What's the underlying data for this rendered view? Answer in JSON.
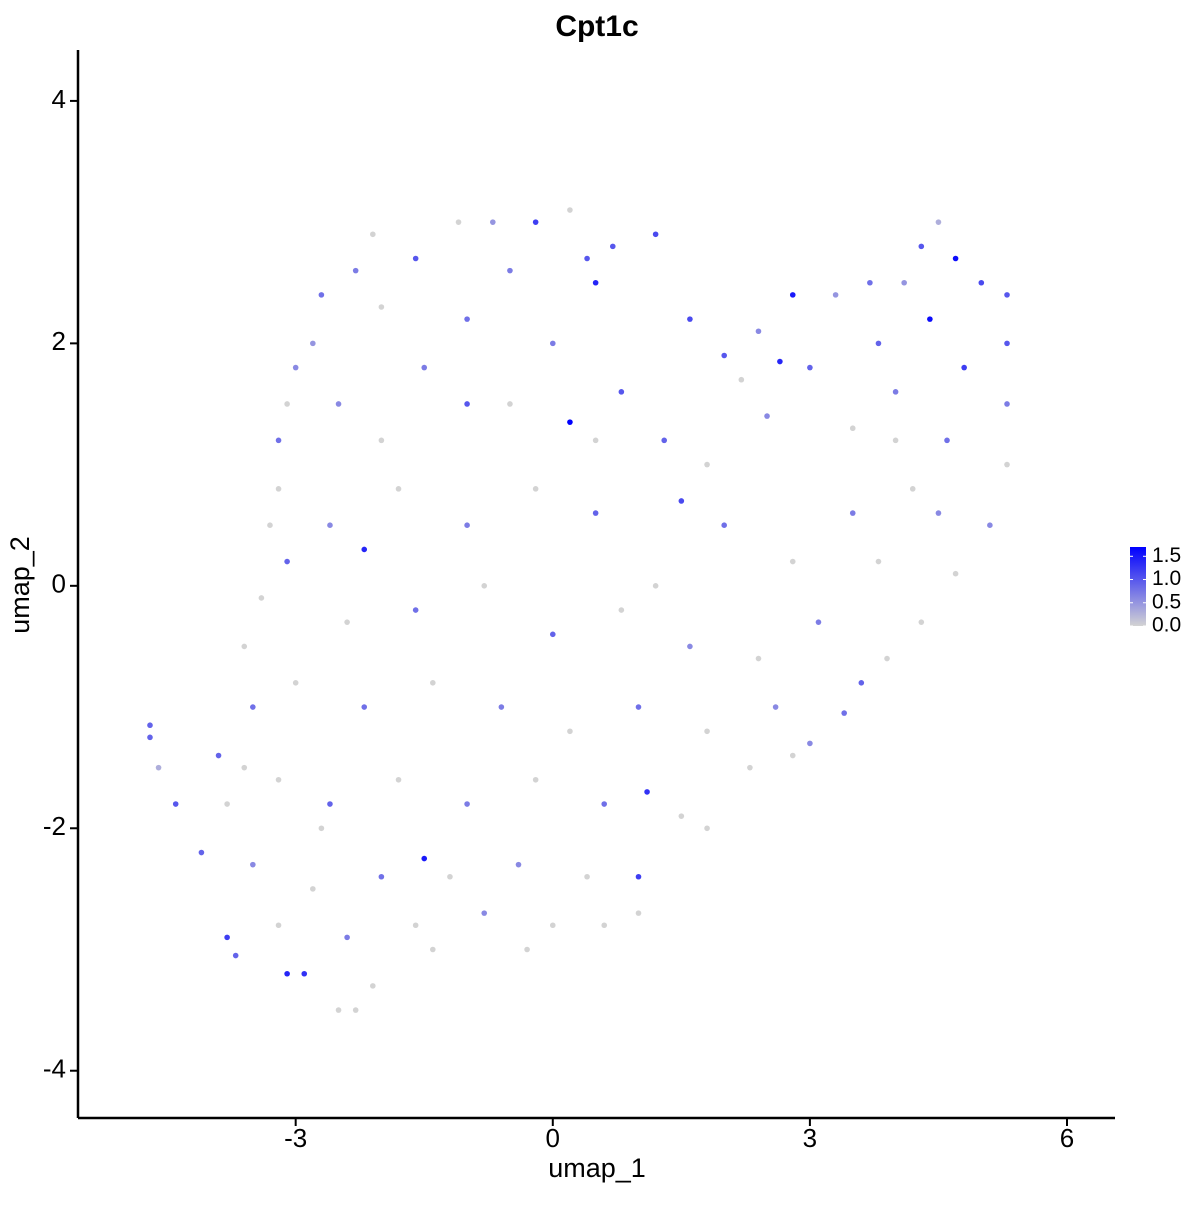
{
  "chart_data": {
    "type": "scatter",
    "title": "Cpt1c",
    "x_label": "umap_1",
    "y_label": "umap_2",
    "x": [
      -4.7,
      -4.7,
      -4.6,
      -4.4,
      -4.1,
      -3.8,
      -3.7,
      -3.1,
      -2.9,
      -2.5,
      -2.3,
      -2.1,
      -1.4,
      -0.3,
      0.6,
      1.0,
      1.0,
      1.1,
      1.5,
      1.8,
      2.3,
      2.8,
      3.0,
      3.4,
      3.6,
      3.9,
      4.3,
      4.7,
      5.1,
      5.3,
      5.3,
      5.3,
      5.3,
      5.0,
      4.7,
      4.5,
      4.3,
      4.1,
      3.7,
      3.3,
      2.8,
      2.4,
      2.0,
      1.6,
      1.2,
      0.7,
      0.4,
      0.2,
      -0.2,
      -0.7,
      -1.1,
      -1.6,
      -2.1,
      -2.3,
      -2.7,
      -2.8,
      -3.0,
      -3.1,
      -3.2,
      -3.2,
      -3.3,
      -3.1,
      -3.4,
      -3.6,
      -3.5,
      -3.9,
      -3.8,
      -2.5,
      -2.0,
      -1.5,
      -1.0,
      -0.5,
      0.0,
      0.8,
      1.3,
      1.8,
      2.5,
      3.0,
      3.5,
      4.0,
      4.6,
      4.8,
      4.2,
      3.5,
      2.8,
      2.0,
      1.2,
      0.5,
      -0.2,
      -1.0,
      -1.8,
      -2.6,
      -2.4,
      -1.6,
      -0.8,
      0.0,
      0.8,
      1.6,
      2.4,
      3.1,
      3.8,
      4.5,
      -3.0,
      -2.2,
      -1.4,
      -0.6,
      0.2,
      1.0,
      1.8,
      2.6,
      -3.2,
      -2.6,
      -1.8,
      -1.0,
      -0.2,
      0.6,
      -3.5,
      -2.8,
      -2.0,
      -1.2,
      -0.4,
      0.4,
      -3.2,
      -2.4,
      -1.6,
      -0.8,
      0.0,
      -1.0,
      0.5,
      -2.0,
      2.2,
      3.8,
      -0.5,
      1.5,
      -2.7,
      -3.6,
      4.0,
      0.2,
      -1.5,
      -2.2,
      4.4,
      0.5,
      2.65
    ],
    "y": [
      -1.25,
      -1.15,
      -1.5,
      -1.8,
      -2.2,
      -2.9,
      -3.05,
      -3.2,
      -3.2,
      -3.5,
      -3.5,
      -3.3,
      -3.0,
      -3.0,
      -2.8,
      -2.7,
      -2.4,
      -1.7,
      -1.9,
      -2.0,
      -1.5,
      -1.4,
      -1.3,
      -1.05,
      -0.8,
      -0.6,
      -0.3,
      0.1,
      0.5,
      1.0,
      1.5,
      2.0,
      2.4,
      2.5,
      2.7,
      3.0,
      2.8,
      2.5,
      2.5,
      2.4,
      2.4,
      2.1,
      1.9,
      2.2,
      2.9,
      2.8,
      2.7,
      3.1,
      3.0,
      3.0,
      3.0,
      2.7,
      2.9,
      2.6,
      2.4,
      2.0,
      1.8,
      1.5,
      1.2,
      0.8,
      0.5,
      0.2,
      -0.1,
      -0.5,
      -1.0,
      -1.4,
      -1.8,
      1.5,
      1.2,
      1.8,
      2.2,
      1.5,
      2.0,
      1.6,
      1.2,
      1.0,
      1.4,
      1.8,
      1.3,
      1.6,
      1.2,
      1.8,
      0.8,
      0.6,
      0.2,
      0.5,
      0.0,
      0.6,
      0.8,
      0.5,
      0.8,
      0.5,
      -0.3,
      -0.2,
      0.0,
      -0.4,
      -0.2,
      -0.5,
      -0.6,
      -0.3,
      0.2,
      0.6,
      -0.8,
      -1.0,
      -0.8,
      -1.0,
      -1.2,
      -1.0,
      -1.2,
      -1.0,
      -1.6,
      -1.8,
      -1.6,
      -1.8,
      -1.6,
      -1.8,
      -2.3,
      -2.5,
      -2.4,
      -2.4,
      -2.3,
      -2.4,
      -2.8,
      -2.9,
      -2.8,
      -2.7,
      -2.8,
      1.5,
      1.2,
      2.3,
      1.7,
      2.0,
      2.6,
      0.7,
      -2.0,
      -1.5,
      1.2,
      1.35,
      -2.25,
      0.3,
      2.2,
      2.5,
      1.85
    ],
    "values": [
      0.9,
      0.9,
      0.3,
      1.0,
      0.9,
      1.2,
      0.9,
      1.4,
      1.3,
      0,
      0,
      0,
      0,
      0,
      0,
      0,
      1.2,
      1.3,
      0,
      0,
      0,
      0,
      0.6,
      0.8,
      0.9,
      0,
      0,
      0,
      0.6,
      0,
      0.7,
      1.0,
      1.0,
      1.1,
      1.6,
      0.3,
      1.0,
      0.5,
      0.8,
      0.5,
      1.5,
      0.6,
      1.0,
      1.1,
      1.1,
      1.0,
      1.0,
      0,
      1.2,
      0.5,
      0,
      1.0,
      0,
      0.7,
      0.8,
      0.5,
      0.6,
      0,
      0.8,
      0,
      0,
      0.9,
      0,
      0,
      0.8,
      0.9,
      0,
      0.6,
      0,
      0.7,
      0.8,
      0,
      0.7,
      1.0,
      0.9,
      0,
      0.6,
      0.9,
      0,
      0.7,
      0.8,
      1.2,
      0,
      0.7,
      0,
      0.8,
      0,
      0.9,
      0,
      0.7,
      0,
      0.6,
      0,
      0.8,
      0,
      0.9,
      0,
      0.6,
      0,
      0.7,
      0,
      0.6,
      0,
      0.8,
      0,
      0.7,
      0,
      0.8,
      0,
      0.6,
      0,
      0.9,
      0,
      0.7,
      0,
      0.8,
      0.6,
      0,
      0.8,
      0,
      0.6,
      0,
      0,
      0.7,
      0,
      0.6,
      0,
      1.0,
      0,
      0,
      0,
      0.9,
      0.7,
      1.1,
      0,
      0,
      0,
      1.7,
      1.5,
      1.4,
      1.6,
      1.4,
      1.4
    ],
    "xlim": [
      -5.54,
      6.56
    ],
    "ylim": [
      -4.39,
      4.42
    ],
    "xticks": [
      -3,
      0,
      3,
      6
    ],
    "yticks": [
      -4,
      -2,
      0,
      2,
      4
    ],
    "color_low": "#d3d3d3",
    "color_high": "#0000ff",
    "colorlim": [
      0,
      1.7
    ],
    "color_ticks": [
      {
        "value": 0,
        "label": "0.0"
      },
      {
        "value": 0.5,
        "label": "0.5"
      },
      {
        "value": 1,
        "label": "1.0"
      },
      {
        "value": 1.5,
        "label": "1.5"
      }
    ]
  }
}
